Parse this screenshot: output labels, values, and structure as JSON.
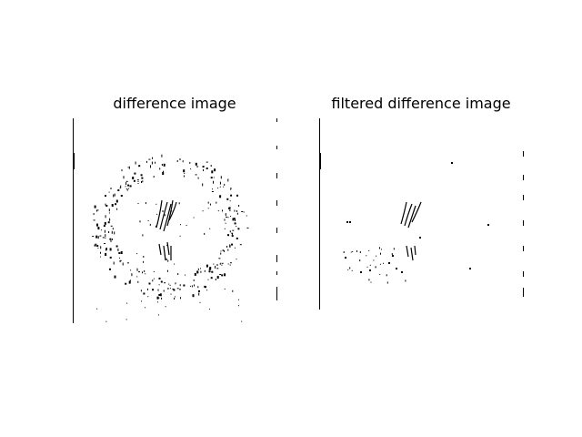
{
  "figure": {
    "panels": [
      {
        "title": "difference image",
        "ink_color": "#000000",
        "background": "#ffffff"
      },
      {
        "title": "filtered difference image",
        "ink_color": "#000000",
        "background": "#ffffff"
      }
    ]
  }
}
